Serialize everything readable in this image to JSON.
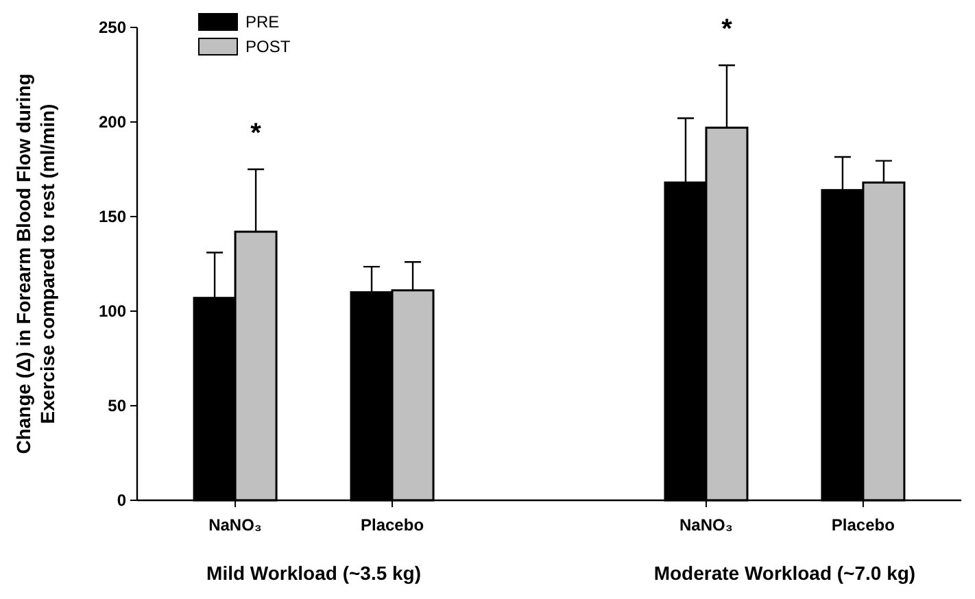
{
  "chart_data": {
    "type": "bar",
    "ylabel": "Change (Δ) in Forearm Blood Flow during Exercise compared to rest (ml/min)",
    "categories": [
      "NaNO₃",
      "Placebo",
      null,
      "NaNO₃",
      "Placebo"
    ],
    "series": [
      {
        "name": "PRE",
        "color": "#000000",
        "values": [
          107,
          110,
          null,
          168,
          164
        ],
        "errors": [
          [
            107,
            131
          ],
          [
            110,
            123.5
          ],
          null,
          [
            168,
            202
          ],
          [
            164,
            181.5
          ]
        ]
      },
      {
        "name": "POST",
        "color": "#c0c0c0",
        "values": [
          142,
          111,
          null,
          197,
          168
        ],
        "errors": [
          [
            142,
            175
          ],
          [
            111,
            126
          ],
          null,
          [
            197,
            230
          ],
          [
            168,
            179.5
          ]
        ],
        "value_labels": [
          "*",
          null,
          null,
          "*",
          null
        ]
      }
    ],
    "annotations": [
      "Mild Workload (~3.5 kg)",
      "Moderate Workload (~7.0 kg)"
    ],
    "ylim": [
      0,
      250
    ],
    "yticks": [
      0,
      50,
      100,
      150,
      200,
      250
    ],
    "legend": "top left",
    "grid": false
  }
}
